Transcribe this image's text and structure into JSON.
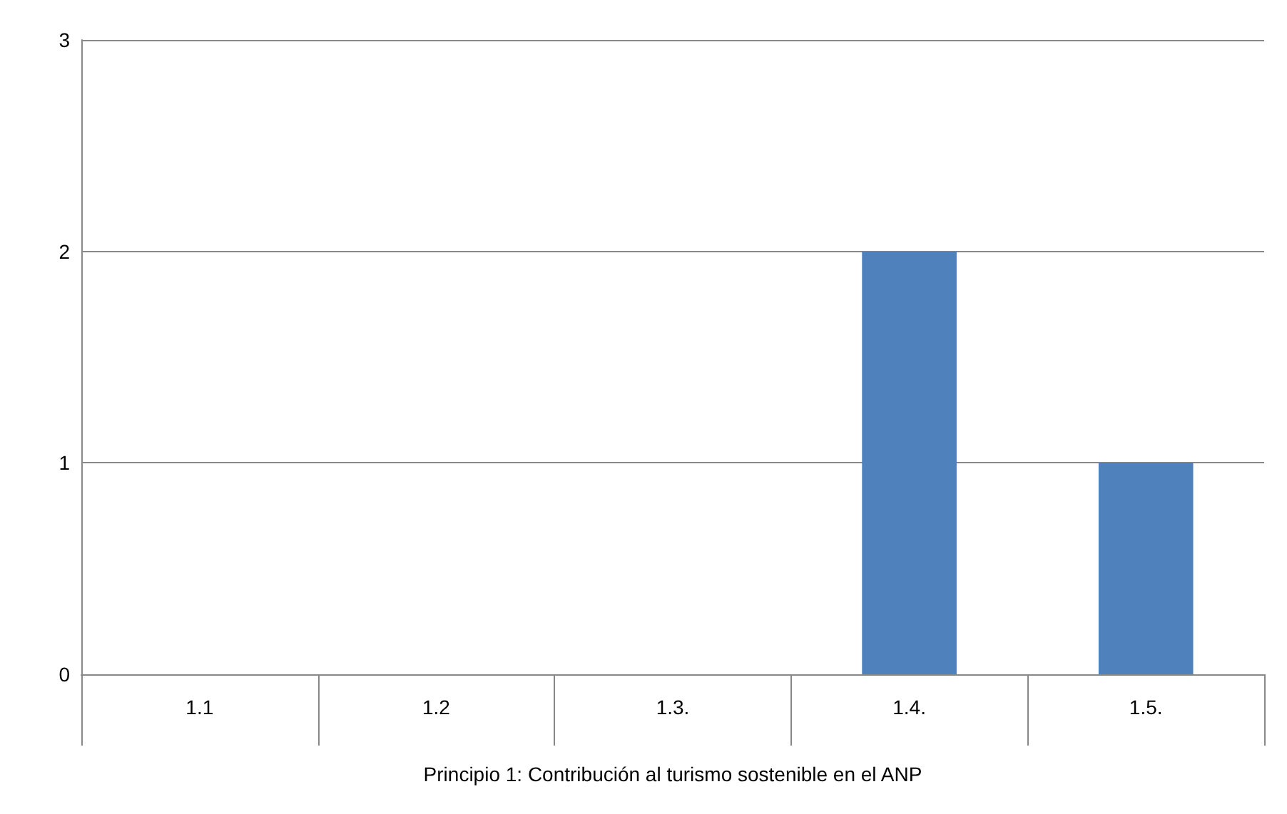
{
  "chart_data": {
    "type": "bar",
    "xlabel": "Principio 1: Contribución al turismo sostenible en el ANP",
    "categories": [
      "1.1",
      "1.2",
      "1.3.",
      "1.4.",
      "1.5."
    ],
    "values": [
      0,
      0,
      0,
      2,
      1
    ],
    "color": "#4f81bd",
    "ylim": [
      0,
      3
    ],
    "yticks": [
      0,
      1,
      2,
      3
    ],
    "grid": "y"
  }
}
